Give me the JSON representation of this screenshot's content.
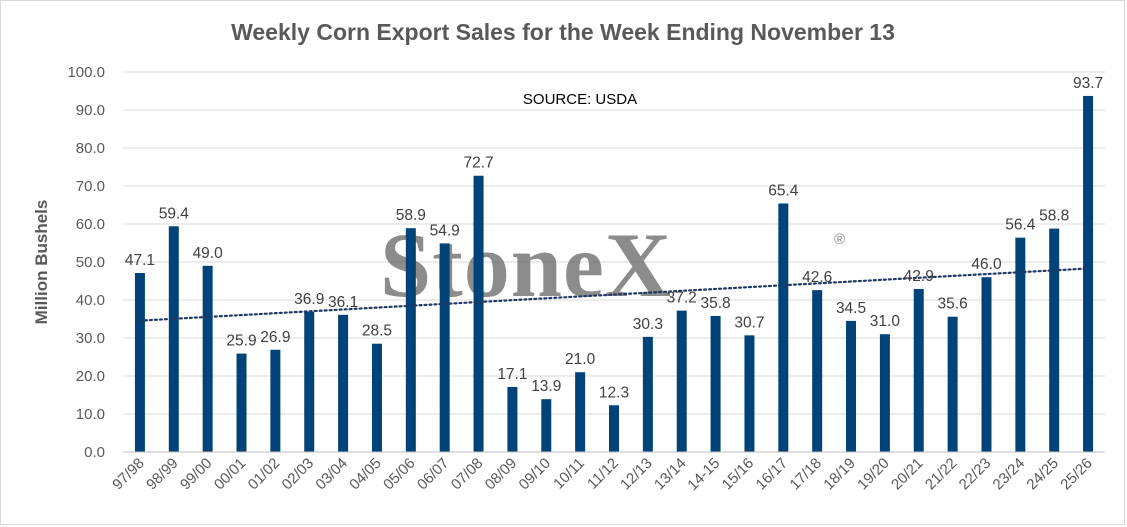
{
  "chart_data": {
    "type": "bar",
    "title": "Weekly Corn Export Sales for the Week Ending November 13",
    "annotation": "SOURCE: USDA",
    "ylabel": "Million Bushels",
    "xlabel": "",
    "ylim": [
      0,
      100
    ],
    "yticks": [
      "0.0",
      "10.0",
      "20.0",
      "30.0",
      "40.0",
      "50.0",
      "60.0",
      "70.0",
      "80.0",
      "90.0",
      "100.0"
    ],
    "categories": [
      "97/98",
      "98/99",
      "99/00",
      "00/01",
      "01/02",
      "02/03",
      "03/04",
      "04/05",
      "05/06",
      "06/07",
      "07/08",
      "08/09",
      "09/10",
      "10/11",
      "11/12",
      "12/13",
      "13/14",
      "14-15",
      "15/16",
      "16/17",
      "17/18",
      "18/19",
      "19/20",
      "20/21",
      "21/22",
      "22/23",
      "23/24",
      "24/25",
      "25/26"
    ],
    "values": [
      47.1,
      59.4,
      49.0,
      25.9,
      26.9,
      36.9,
      36.1,
      28.5,
      58.9,
      54.9,
      72.7,
      17.1,
      13.9,
      21.0,
      12.3,
      30.3,
      37.2,
      35.8,
      30.7,
      65.4,
      42.6,
      34.5,
      31.0,
      42.9,
      35.6,
      46.0,
      56.4,
      58.8,
      93.7
    ],
    "data_labels": [
      "47.1",
      "59.4",
      "49.0",
      "25.9",
      "26.9",
      "36.9",
      "36.1",
      "28.5",
      "58.9",
      "54.9",
      "72.7",
      "17.1",
      "13.9",
      "21.0",
      "12.3",
      "30.3",
      "37.2",
      "35.8",
      "30.7",
      "65.4",
      "42.6",
      "34.5",
      "31.0",
      "42.9",
      "35.6",
      "46.0",
      "56.4",
      "58.8",
      "93.7"
    ],
    "trendline": "linear, dotted",
    "grid": "horizontal",
    "bar_color": "#004379",
    "trend_color": "#1f3864"
  },
  "watermark": {
    "text": "StoneX",
    "registered": "®"
  }
}
